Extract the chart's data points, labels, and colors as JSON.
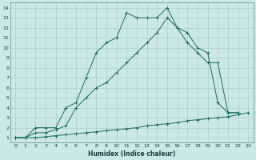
{
  "xlabel": "Humidex (Indice chaleur)",
  "bg_color": "#cce8e5",
  "line_color": "#1a6b5a",
  "grid_major_color": "#aacfcb",
  "grid_minor_color": "#c0deda",
  "xlim": [
    -0.5,
    23.5
  ],
  "ylim": [
    0.5,
    14.5
  ],
  "xticks": [
    0,
    1,
    2,
    3,
    4,
    5,
    6,
    7,
    8,
    9,
    10,
    11,
    12,
    13,
    14,
    15,
    16,
    17,
    18,
    19,
    20,
    21,
    22,
    23
  ],
  "yticks": [
    1,
    2,
    3,
    4,
    5,
    6,
    7,
    8,
    9,
    10,
    11,
    12,
    13,
    14
  ],
  "line1_x": [
    0,
    1,
    2,
    3,
    4,
    5,
    6,
    7,
    8,
    9,
    10,
    11,
    12,
    13,
    14,
    15,
    16,
    17,
    18,
    19,
    20,
    21,
    22
  ],
  "line1_y": [
    1,
    1,
    2,
    2,
    2,
    4,
    4.5,
    7,
    9.5,
    10.5,
    11,
    13.5,
    13,
    13,
    13,
    14,
    12,
    11.5,
    10,
    9.5,
    4.5,
    3.5,
    3.5
  ],
  "line2_x": [
    0,
    1,
    2,
    3,
    4,
    5,
    6,
    7,
    8,
    9,
    10,
    11,
    12,
    13,
    14,
    15,
    16,
    17,
    18,
    19,
    20,
    21,
    22
  ],
  "line2_y": [
    1,
    1,
    1.5,
    1.5,
    1.8,
    2.2,
    4,
    5,
    6,
    6.5,
    7.5,
    8.5,
    9.5,
    10.5,
    11.5,
    13,
    12,
    10.5,
    9.5,
    8.5,
    8.5,
    3.5,
    3.5
  ],
  "line3_x": [
    0,
    1,
    2,
    3,
    4,
    5,
    6,
    7,
    8,
    9,
    10,
    11,
    12,
    13,
    14,
    15,
    16,
    17,
    18,
    19,
    20,
    21,
    22,
    23
  ],
  "line3_y": [
    1,
    1,
    1,
    1.1,
    1.2,
    1.3,
    1.4,
    1.5,
    1.6,
    1.7,
    1.8,
    1.9,
    2.0,
    2.2,
    2.3,
    2.4,
    2.5,
    2.7,
    2.8,
    2.9,
    3.0,
    3.1,
    3.3,
    3.5
  ]
}
